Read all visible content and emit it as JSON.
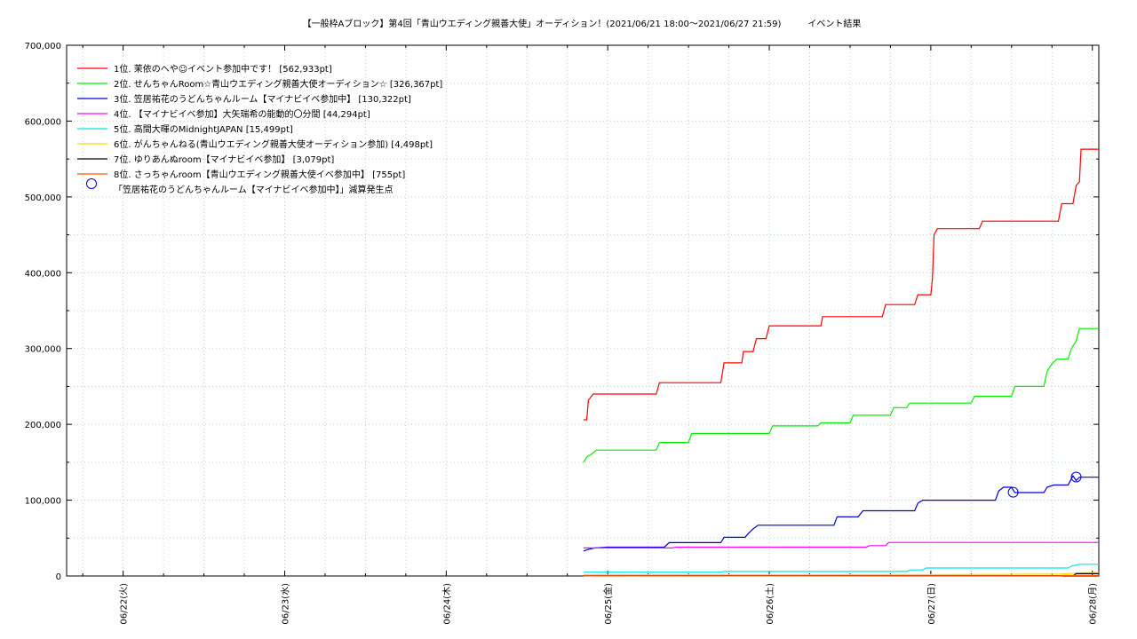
{
  "chart_data": {
    "type": "line",
    "title": "【一般枠Aブロック】第4回「青山ウエディング親善大使」オーディション！(2021/06/21 18:00～2021/06/27 21:59)　　　イベント結果",
    "xlabel": "",
    "ylabel": "",
    "x_ticks": [
      "06/22(火)",
      "06/23(水)",
      "06/24(木)",
      "06/25(金)",
      "06/26(土)",
      "06/27(日)",
      "06/28(月)"
    ],
    "y_ticks": [
      "0",
      "100,000",
      "200,000",
      "300,000",
      "400,000",
      "500,000",
      "600,000",
      "700,000"
    ],
    "ylim": [
      0,
      700000
    ],
    "xlim_days": [
      21.65,
      28.04
    ],
    "grid": true,
    "legend_position": "top-left",
    "series": [
      {
        "name": "1位. 茉依のへや☺イベント参加中です！ [562,933pt]",
        "color": "#ff0000",
        "points": [
          [
            24.85,
            206000
          ],
          [
            24.87,
            206000
          ],
          [
            24.88,
            232000
          ],
          [
            24.91,
            240000
          ],
          [
            25.3,
            240000
          ],
          [
            25.32,
            255000
          ],
          [
            25.7,
            255000
          ],
          [
            25.72,
            281000
          ],
          [
            25.83,
            281000
          ],
          [
            25.84,
            296000
          ],
          [
            25.9,
            296000
          ],
          [
            25.92,
            313000
          ],
          [
            25.98,
            313000
          ],
          [
            26.0,
            330000
          ],
          [
            26.32,
            330000
          ],
          [
            26.33,
            342000
          ],
          [
            26.7,
            342000
          ],
          [
            26.72,
            358000
          ],
          [
            26.9,
            358000
          ],
          [
            26.92,
            371000
          ],
          [
            27.0,
            371000
          ],
          [
            27.01,
            392000
          ],
          [
            27.02,
            450000
          ],
          [
            27.04,
            458000
          ],
          [
            27.3,
            458000
          ],
          [
            27.32,
            468000
          ],
          [
            27.79,
            468000
          ],
          [
            27.81,
            491000
          ],
          [
            27.88,
            491000
          ],
          [
            27.9,
            515000
          ],
          [
            27.92,
            520000
          ],
          [
            27.93,
            562933
          ],
          [
            28.04,
            562933
          ]
        ]
      },
      {
        "name": "2位. せんちゃんRoom☆青山ウエディング親善大使オーディション☆ [326,367pt]",
        "color": "#00ee00",
        "points": [
          [
            24.85,
            150000
          ],
          [
            24.87,
            157000
          ],
          [
            24.9,
            161000
          ],
          [
            24.93,
            166000
          ],
          [
            25.3,
            166000
          ],
          [
            25.32,
            176000
          ],
          [
            25.5,
            176000
          ],
          [
            25.52,
            188000
          ],
          [
            26.0,
            188000
          ],
          [
            26.02,
            198000
          ],
          [
            26.3,
            198000
          ],
          [
            26.32,
            202000
          ],
          [
            26.5,
            202000
          ],
          [
            26.52,
            212000
          ],
          [
            26.75,
            212000
          ],
          [
            26.77,
            222000
          ],
          [
            26.85,
            222000
          ],
          [
            26.87,
            228000
          ],
          [
            27.25,
            228000
          ],
          [
            27.27,
            237000
          ],
          [
            27.5,
            237000
          ],
          [
            27.52,
            250000
          ],
          [
            27.7,
            250000
          ],
          [
            27.72,
            270000
          ],
          [
            27.75,
            280000
          ],
          [
            27.78,
            286000
          ],
          [
            27.85,
            286000
          ],
          [
            27.87,
            300000
          ],
          [
            27.9,
            310000
          ],
          [
            27.92,
            326367
          ],
          [
            28.04,
            326367
          ]
        ]
      },
      {
        "name": "3位. 笠居祐花のうどんちゃんルーム【マイナビイベ参加中】 [130,322pt]",
        "color": "#0000dd",
        "points": [
          [
            24.85,
            33000
          ],
          [
            24.88,
            35000
          ],
          [
            24.92,
            37000
          ],
          [
            25.0,
            38000
          ],
          [
            25.35,
            38000
          ],
          [
            25.38,
            44000
          ],
          [
            25.7,
            44000
          ],
          [
            25.72,
            51000
          ],
          [
            25.85,
            51000
          ],
          [
            25.87,
            56000
          ],
          [
            25.9,
            62000
          ],
          [
            25.93,
            67000
          ],
          [
            26.4,
            67000
          ],
          [
            26.42,
            78000
          ],
          [
            26.55,
            78000
          ],
          [
            26.58,
            86000
          ],
          [
            26.9,
            86000
          ],
          [
            26.92,
            96000
          ],
          [
            26.95,
            100000
          ],
          [
            27.4,
            100000
          ],
          [
            27.42,
            112000
          ],
          [
            27.45,
            117000
          ],
          [
            27.5,
            117000
          ],
          [
            27.52,
            110000
          ],
          [
            27.7,
            110000
          ],
          [
            27.72,
            117000
          ],
          [
            27.76,
            120000
          ],
          [
            27.85,
            120000
          ],
          [
            27.88,
            132000
          ],
          [
            27.9,
            126000
          ],
          [
            27.92,
            130322
          ],
          [
            28.04,
            130322
          ]
        ]
      },
      {
        "name": "4位. 【マイナビイベ参加】大矢瑞希の能動的〇分間 [44,294pt]",
        "color": "#ff00ff",
        "points": [
          [
            24.85,
            37000
          ],
          [
            25.4,
            37000
          ],
          [
            25.42,
            38000
          ],
          [
            26.6,
            38000
          ],
          [
            26.62,
            40000
          ],
          [
            26.72,
            40000
          ],
          [
            26.74,
            44294
          ],
          [
            28.04,
            44294
          ]
        ]
      },
      {
        "name": "5位. 高間大暉のMidnightJAPAN [15,499pt]",
        "color": "#00e8e8",
        "points": [
          [
            24.85,
            5000
          ],
          [
            25.7,
            5000
          ],
          [
            25.72,
            6000
          ],
          [
            26.85,
            6000
          ],
          [
            26.87,
            8000
          ],
          [
            26.95,
            8000
          ],
          [
            26.97,
            10500
          ],
          [
            27.85,
            10500
          ],
          [
            27.87,
            13000
          ],
          [
            27.92,
            15499
          ],
          [
            28.04,
            15499
          ]
        ]
      },
      {
        "name": "6位. がんちゃんねる(青山ウエディング親善大使オーディション参加) [4,498pt]",
        "color": "#f0e000",
        "points": [
          [
            24.85,
            1500
          ],
          [
            27.0,
            1800
          ],
          [
            27.8,
            2500
          ],
          [
            27.95,
            4498
          ],
          [
            28.04,
            4498
          ]
        ]
      },
      {
        "name": "7位. ゆりあんぬroom【マイナビイベ参加】 [3,079pt]",
        "color": "#000000",
        "points": [
          [
            24.85,
            200
          ],
          [
            27.88,
            300
          ],
          [
            27.9,
            3079
          ],
          [
            28.04,
            3079
          ]
        ]
      },
      {
        "name": "8位. さっちゃんroom【青山ウエディング親善大使イベ参加中】 [755pt]",
        "color": "#ff5500",
        "points": [
          [
            24.85,
            100
          ],
          [
            27.8,
            200
          ],
          [
            27.82,
            755
          ],
          [
            28.04,
            755
          ]
        ]
      }
    ],
    "markers": {
      "name": "「笠居祐花のうどんちゃんルーム【マイナビイベ参加中】」減算発生点",
      "color": "#0000dd",
      "points": [
        [
          27.51,
          110500
        ],
        [
          27.9,
          130500
        ]
      ]
    }
  }
}
